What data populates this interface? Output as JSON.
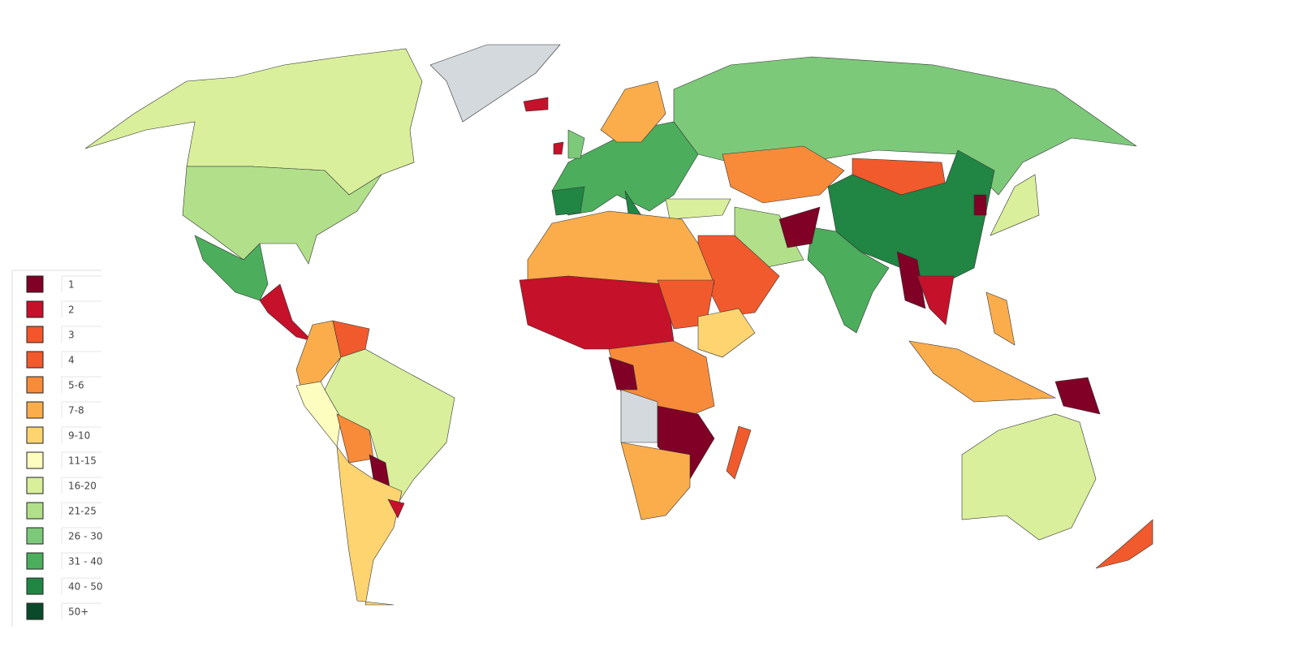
{
  "legend": {
    "items": [
      {
        "label": "1",
        "color": "#800026"
      },
      {
        "label": "2",
        "color": "#c5112a"
      },
      {
        "label": "3",
        "color": "#f4552b"
      },
      {
        "label": "4",
        "color": "#f15a2d"
      },
      {
        "label": "5-6",
        "color": "#f88b3a"
      },
      {
        "label": "7-8",
        "color": "#fbad4c"
      },
      {
        "label": "9-10",
        "color": "#fdd470"
      },
      {
        "label": "11-15",
        "color": "#fefdc0"
      },
      {
        "label": "16-20",
        "color": "#d9ef9b"
      },
      {
        "label": "21-25",
        "color": "#b2e08a"
      },
      {
        "label": "26 - 30",
        "color": "#7dc97a"
      },
      {
        "label": "31 - 40",
        "color": "#4cae5c"
      },
      {
        "label": "40 - 50",
        "color": "#218544"
      },
      {
        "label": "50+",
        "color": "#0a4a2a"
      }
    ]
  }
}
